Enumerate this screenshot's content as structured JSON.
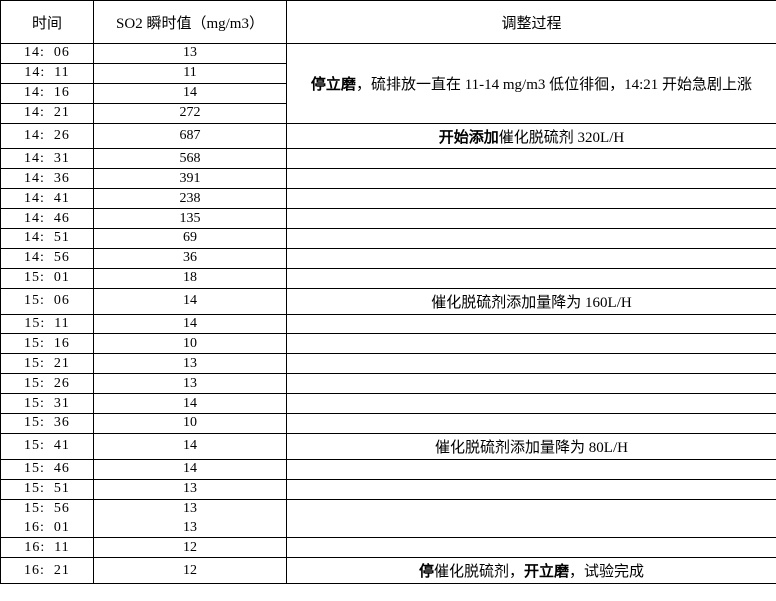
{
  "table": {
    "headers": {
      "time": "时间",
      "so2": "SO2 瞬时值（mg/m3）",
      "process": "调整过程"
    },
    "rows": [
      {
        "time": "14:  06",
        "value": "13",
        "note_rowspan": 4,
        "note_segments": [
          {
            "text": "停立磨",
            "bold": true
          },
          {
            "text": "，硫排放一直在 11-14 mg/m3 低位徘徊，14:21 开始急剧上涨",
            "bold": false
          }
        ]
      },
      {
        "time": "14:  11",
        "value": "11",
        "merged_into_above": true
      },
      {
        "time": "14:  16",
        "value": "14",
        "merged_into_above": true
      },
      {
        "time": "14:  21",
        "value": "272",
        "merged_into_above": true
      },
      {
        "time": "14:  26",
        "value": "687",
        "note_segments": [
          {
            "text": "开始添加",
            "bold": true
          },
          {
            "text": "催化脱硫剂 320L/H",
            "bold": false
          }
        ]
      },
      {
        "time": "14:  31",
        "value": "568"
      },
      {
        "time": "14:  36",
        "value": "391"
      },
      {
        "time": "14:  41",
        "value": "238"
      },
      {
        "time": "14:  46",
        "value": "135"
      },
      {
        "time": "14:  51",
        "value": "69"
      },
      {
        "time": "14:  56",
        "value": "36"
      },
      {
        "time": "15:  01",
        "value": "18"
      },
      {
        "time": "15:  06",
        "value": "14",
        "note_segments": [
          {
            "text": "催化脱硫剂添加量降为 160L/H",
            "bold": false
          }
        ]
      },
      {
        "time": "15:  11",
        "value": "14"
      },
      {
        "time": "15:  16",
        "value": "10"
      },
      {
        "time": "15:  21",
        "value": "13"
      },
      {
        "time": "15:  26",
        "value": "13"
      },
      {
        "time": "15:  31",
        "value": "14"
      },
      {
        "time": "15:  36",
        "value": "10"
      },
      {
        "time": "15:  41",
        "value": "14",
        "note_segments": [
          {
            "text": "催化脱硫剂添加量降为 80L/H",
            "bold": false
          }
        ]
      },
      {
        "time": "15:  46",
        "value": "14"
      },
      {
        "time": "15:  51",
        "value": "13"
      },
      {
        "time": "15:  56",
        "value": "13",
        "no_divider": true
      },
      {
        "time": "16:  01",
        "value": "13"
      },
      {
        "time": "16:  11",
        "value": "12"
      },
      {
        "time": "16:  21",
        "value": "12",
        "note_segments": [
          {
            "text": "停",
            "bold": true
          },
          {
            "text": "催化脱硫剂，",
            "bold": false
          },
          {
            "text": "开立磨",
            "bold": true
          },
          {
            "text": "，试验完成",
            "bold": false
          }
        ]
      }
    ]
  }
}
